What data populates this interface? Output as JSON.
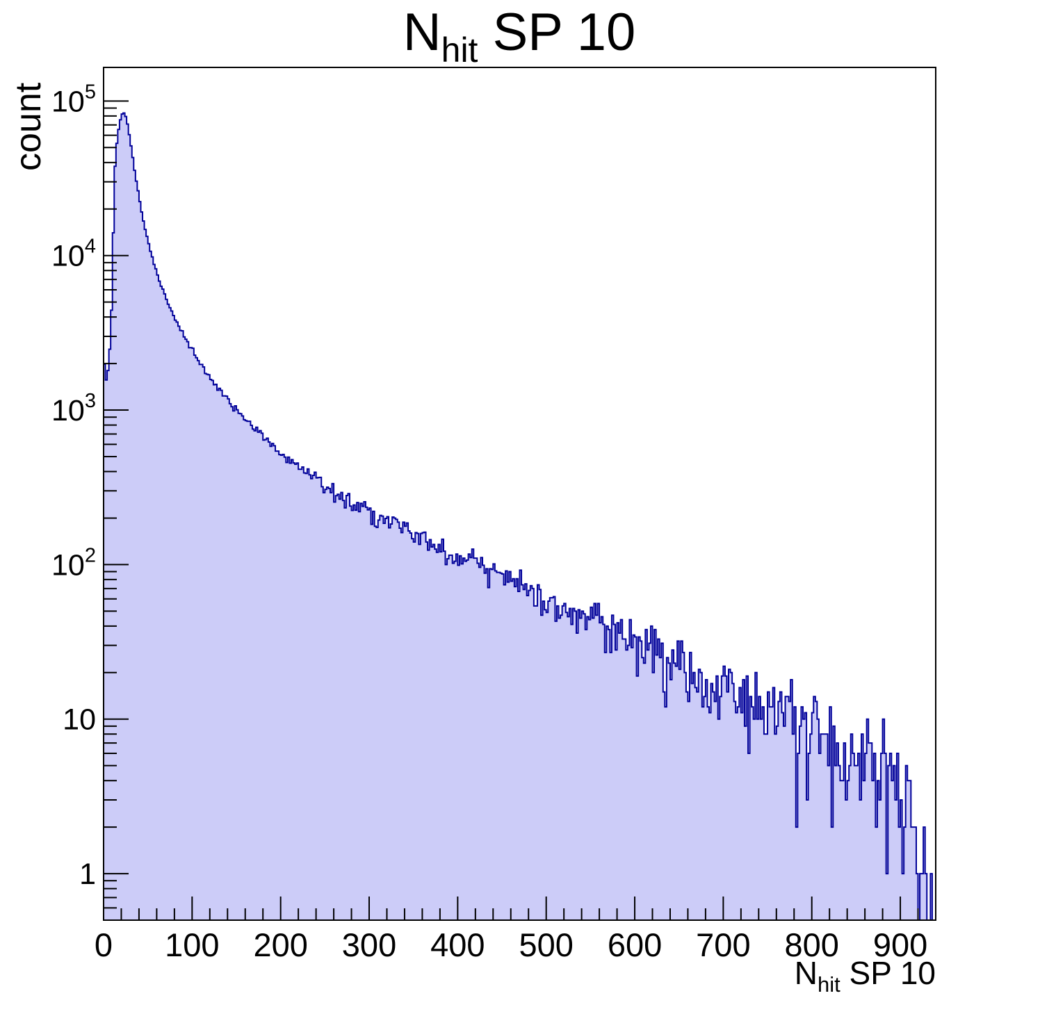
{
  "figure": {
    "background": "#ffffff",
    "title": {
      "base": "N",
      "sub": "hit",
      "rest": " SP 10"
    },
    "y_axis": {
      "title": "count",
      "scale": "log",
      "min": 0.5,
      "max": 165000,
      "tick_labels": [
        {
          "v": 1,
          "t": "1",
          "e": ""
        },
        {
          "v": 10,
          "t": "10",
          "e": ""
        },
        {
          "v": 100,
          "t": "10",
          "e": "2"
        },
        {
          "v": 1000,
          "t": "10",
          "e": "3"
        },
        {
          "v": 10000,
          "t": "10",
          "e": "4"
        },
        {
          "v": 100000,
          "t": "10",
          "e": "5"
        }
      ]
    },
    "x_axis": {
      "title": {
        "base": "N",
        "sub": "hit",
        "rest": " SP 10"
      },
      "min": 0,
      "max": 940,
      "major_ticks": [
        0,
        100,
        200,
        300,
        400,
        500,
        600,
        700,
        800,
        900
      ],
      "minor_step": 20
    },
    "colors": {
      "fill": "#ccccf8",
      "line": "#000099",
      "axis": "#000000",
      "text": "#000000"
    }
  },
  "chart_data": {
    "type": "bar",
    "subtype": "histogram-log-y",
    "title": "N_hit SP 10",
    "xlabel": "N_hit SP 10",
    "ylabel": "count",
    "xlim": [
      0,
      940
    ],
    "ylim": [
      0.5,
      165000
    ],
    "y_scale": "log",
    "grid": false,
    "legend": "none",
    "bin_width": 2,
    "n_bins": 470,
    "peak": {
      "x": 22,
      "count": 85000
    },
    "first_bin_spike": {
      "x": 0,
      "count": 2600
    },
    "noise_model": "poisson",
    "seed": 1337,
    "envelope_points": [
      [
        0,
        2600
      ],
      [
        2,
        1470
      ],
      [
        4,
        1700
      ],
      [
        6,
        2000
      ],
      [
        8,
        3200
      ],
      [
        9,
        4500
      ],
      [
        10,
        7500
      ],
      [
        11,
        14000
      ],
      [
        12,
        26000
      ],
      [
        13,
        38000
      ],
      [
        14,
        47000
      ],
      [
        16,
        60000
      ],
      [
        18,
        71000
      ],
      [
        20,
        80000
      ],
      [
        22,
        84500
      ],
      [
        24,
        83000
      ],
      [
        26,
        76000
      ],
      [
        28,
        66000
      ],
      [
        30,
        56000
      ],
      [
        33,
        43000
      ],
      [
        36,
        33000
      ],
      [
        40,
        24000
      ],
      [
        44,
        18000
      ],
      [
        48,
        14000
      ],
      [
        52,
        11200
      ],
      [
        56,
        9200
      ],
      [
        60,
        7800
      ],
      [
        65,
        6400
      ],
      [
        70,
        5400
      ],
      [
        75,
        4600
      ],
      [
        80,
        4000
      ],
      [
        85,
        3500
      ],
      [
        90,
        3100
      ],
      [
        95,
        2750
      ],
      [
        100,
        2450
      ],
      [
        105,
        2200
      ],
      [
        110,
        1980
      ],
      [
        115,
        1800
      ],
      [
        120,
        1640
      ],
      [
        130,
        1380
      ],
      [
        140,
        1170
      ],
      [
        150,
        1000
      ],
      [
        160,
        870
      ],
      [
        170,
        760
      ],
      [
        180,
        670
      ],
      [
        190,
        595
      ],
      [
        200,
        530
      ],
      [
        210,
        478
      ],
      [
        220,
        432
      ],
      [
        230,
        393
      ],
      [
        240,
        358
      ],
      [
        250,
        328
      ],
      [
        260,
        302
      ],
      [
        270,
        278
      ],
      [
        280,
        257
      ],
      [
        290,
        238
      ],
      [
        300,
        221
      ],
      [
        310,
        206
      ],
      [
        320,
        192
      ],
      [
        330,
        179
      ],
      [
        340,
        167
      ],
      [
        350,
        156
      ],
      [
        360,
        146
      ],
      [
        370,
        137
      ],
      [
        380,
        128
      ],
      [
        390,
        120
      ],
      [
        400,
        113
      ],
      [
        410,
        106
      ],
      [
        420,
        99
      ],
      [
        430,
        93
      ],
      [
        440,
        87
      ],
      [
        450,
        82
      ],
      [
        460,
        77
      ],
      [
        470,
        72
      ],
      [
        480,
        68
      ],
      [
        490,
        64
      ],
      [
        500,
        60
      ],
      [
        510,
        56
      ],
      [
        520,
        53
      ],
      [
        530,
        50
      ],
      [
        540,
        47
      ],
      [
        550,
        44
      ],
      [
        560,
        41
      ],
      [
        570,
        39
      ],
      [
        580,
        36
      ],
      [
        590,
        34
      ],
      [
        600,
        32
      ],
      [
        620,
        28
      ],
      [
        640,
        25
      ],
      [
        660,
        22
      ],
      [
        680,
        19.5
      ],
      [
        700,
        17
      ],
      [
        720,
        15
      ],
      [
        740,
        13.2
      ],
      [
        760,
        11.6
      ],
      [
        780,
        10.2
      ],
      [
        800,
        9
      ],
      [
        820,
        7.9
      ],
      [
        840,
        6.9
      ],
      [
        860,
        6
      ],
      [
        880,
        5
      ],
      [
        890,
        4.4
      ],
      [
        900,
        3.6
      ],
      [
        910,
        2.6
      ],
      [
        920,
        1.6
      ],
      [
        930,
        0.9
      ],
      [
        940,
        0.5
      ]
    ]
  }
}
